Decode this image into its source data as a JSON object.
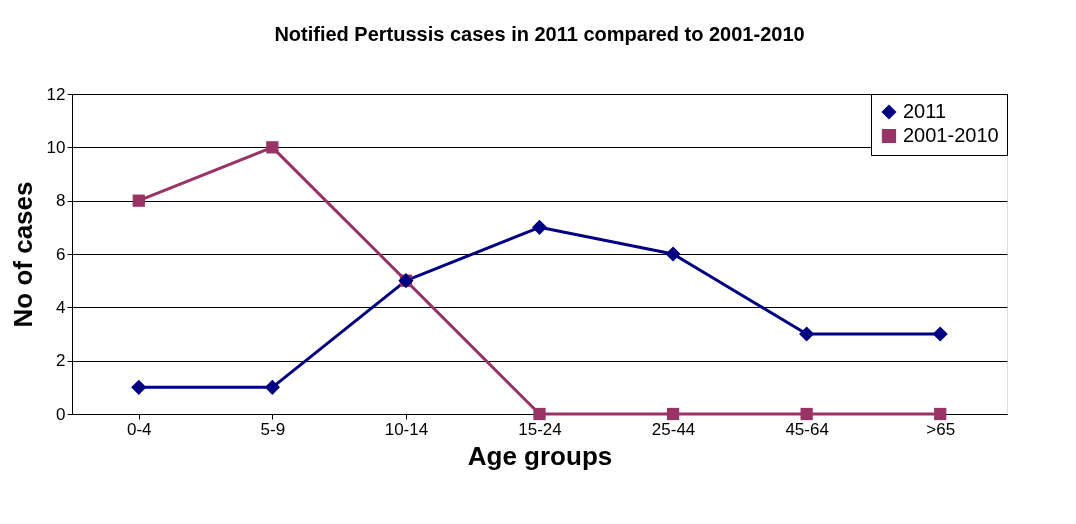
{
  "chart_data": {
    "type": "line",
    "title": "Notified Pertussis cases in 2011 compared to 2001-2010",
    "xlabel": "Age groups",
    "ylabel": "No of cases",
    "categories": [
      "0-4",
      "5-9",
      "10-14",
      "15-24",
      "25-44",
      "45-64",
      ">65"
    ],
    "series": [
      {
        "name": "2011",
        "color": "#000080",
        "marker": "diamond",
        "values": [
          1,
          1,
          5,
          7,
          6,
          3,
          3
        ]
      },
      {
        "name": "2001-2010",
        "color": "#993366",
        "marker": "square",
        "values": [
          8,
          10,
          5,
          0,
          0,
          0,
          0
        ]
      }
    ],
    "ylim": [
      0,
      12
    ],
    "yticks": [
      0,
      2,
      4,
      6,
      8,
      10,
      12
    ],
    "grid": "y",
    "legend": "top right"
  }
}
